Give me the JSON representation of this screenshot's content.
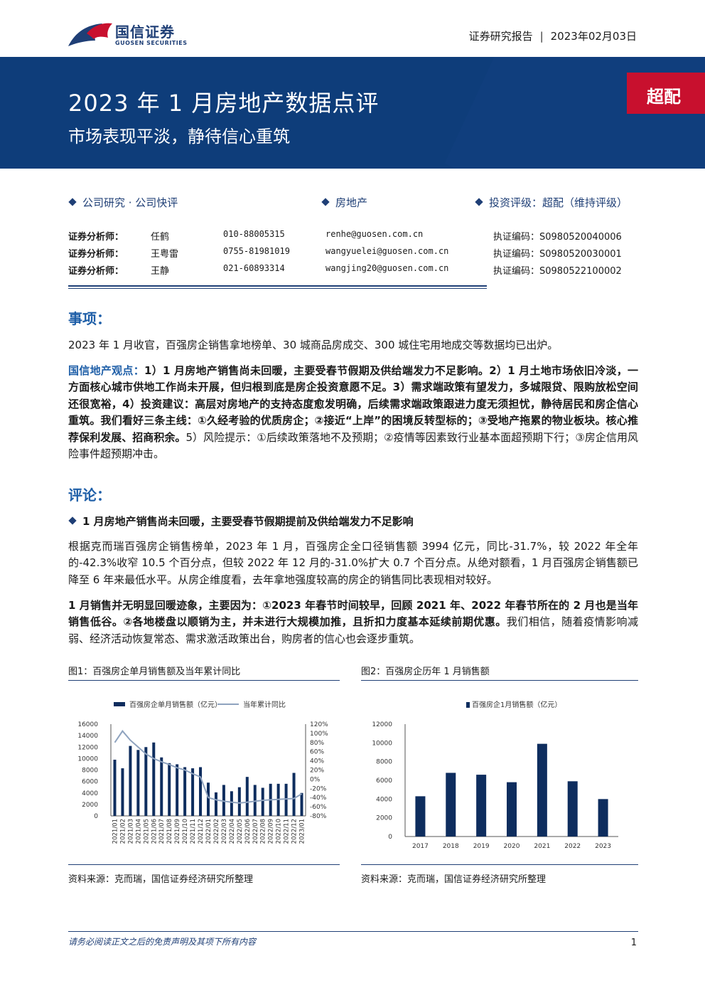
{
  "brand": {
    "name_cn": "国信证券",
    "name_en": "GUOSEN SECURITIES",
    "colors": {
      "navy": "#1f3f76",
      "banner": "#0e3d7a",
      "accent_blue": "#1f5fa8",
      "red": "#c8102e"
    }
  },
  "header": {
    "report_type": "证券研究报告",
    "date": "2023年02月03日"
  },
  "banner": {
    "title": "2023 年 1 月房地产数据点评",
    "subtitle": "市场表现平淡，静待信心重筑",
    "rating": "超配"
  },
  "info": {
    "category": "公司研究 · 公司快评",
    "sector": "房地产",
    "rating_text": "投资评级：超配（维持评级）"
  },
  "analysts": [
    {
      "role": "证券分析师：",
      "name": "任鹤",
      "phone": "010-88005315",
      "email": "renhe@guosen.com.cn",
      "license": "执证编码：S0980520040006"
    },
    {
      "role": "证券分析师：",
      "name": "王粤雷",
      "phone": "0755-81981019",
      "email": "wangyuelei@guosen.com.cn",
      "license": "执证编码：S0980520030001"
    },
    {
      "role": "证券分析师：",
      "name": "王静",
      "phone": "021-60893314",
      "email": "wangjing20@guosen.com.cn",
      "license": "执证编码：S0980522100002"
    }
  ],
  "event": {
    "heading": "事项：",
    "text": "2023 年 1 月收官，百强房企销售拿地榜单、30 城商品房成交、300 城住宅用地成交等数据均已出炉。"
  },
  "view": {
    "label": "国信地产观点：",
    "bold_text": "1）1 月房地产销售尚未回暖，主要受春节假期及供给端发力不足影响。2）1 月土地市场依旧冷淡，一方面核心城市供地工作尚未开展，但归根到底是房企投资意愿不足。3）需求端政策有望发力，多城限贷、限购放松空间还很宽裕，4）投资建议：高层对房地产的支持态度愈发明确，后续需求端政策跟进力度无须担忧，静待居民和房企信心重筑。我们看好三条主线：①久经考验的优质房企；②接近“上岸”的困境反转型标的；③受地产拖累的物业板块。核心推荐保利发展、招商积余。",
    "normal_text": "5）风险提示：①后续政策落地不及预期；②疫情等因素致行业基本面超预期下行；③房企信用风险事件超预期冲击。"
  },
  "comment": {
    "heading": "评论：",
    "bullet": "1 月房地产销售尚未回暖，主要受春节假期提前及供给端发力不足影响",
    "para1": "根据克而瑞百强房企销售榜单，2023 年 1 月，百强房企全口径销售额 3994 亿元，同比-31.7%，较 2022 年全年的-42.3%收窄 10.5 个百分点，但较 2022 年 12 月的-31.0%扩大 0.7 个百分点。从绝对额看，1 月百强房企销售额已降至 6 年来最低水平。从房企维度看，去年拿地强度较高的房企的销售同比表现相对较好。",
    "para2_bold": "1 月销售并无明显回暖迹象，主要因为：①2023 年春节时间较早，回顾 2021 年、2022 年春节所在的 2 月也是当年销售低谷。②各地楼盘以顺销为主，并未进行大规模加推，且折扣力度基本延续前期优惠。",
    "para2_normal": "我们相信，随着疫情影响减弱、经济活动恢复常态、需求激活政策出台，购房者的信心也会逐步重筑。"
  },
  "figure1": {
    "title": "图1：百强房企单月销售额及当年累计同比",
    "source": "资料来源：克而瑞，国信证券经济研究所整理"
  },
  "figure2": {
    "title": "图2：百强房企历年 1 月销售额",
    "source": "资料来源：克而瑞，国信证券经济研究所整理"
  },
  "footer": {
    "disclaimer": "请务必阅读正文之后的免责声明及其项下所有内容",
    "page": "1"
  },
  "chart_data": [
    {
      "type": "bar",
      "secondary_type": "line",
      "categories": [
        "2021/01",
        "2021/02",
        "2021/03",
        "2021/04",
        "2021/05",
        "2021/06",
        "2021/07",
        "2021/08",
        "2021/09",
        "2021/10",
        "2021/11",
        "2021/12",
        "2022/01",
        "2022/02",
        "2022/03",
        "2022/04",
        "2022/05",
        "2022/06",
        "2022/07",
        "2022/08",
        "2022/09",
        "2022/10",
        "2022/11",
        "2022/12",
        "2023/01"
      ],
      "series": [
        {
          "name": "百强房企单月销售额（亿元）",
          "axis": "left",
          "color": "#0e2d5e",
          "values": [
            9800,
            8300,
            12200,
            11500,
            12000,
            12800,
            10200,
            9200,
            9000,
            8500,
            8300,
            8500,
            5800,
            4100,
            5400,
            4300,
            5000,
            6800,
            5400,
            4900,
            5600,
            5600,
            5600,
            7500,
            4000
          ]
        },
        {
          "name": "当年累计同比",
          "axis": "right",
          "color": "#8fa3bf",
          "values": [
            80,
            105,
            85,
            70,
            55,
            45,
            38,
            32,
            25,
            20,
            12,
            5,
            -40,
            -45,
            -48,
            -50,
            -52,
            -50,
            -48,
            -46,
            -45,
            -44,
            -43,
            -42,
            -32
          ]
        }
      ],
      "yleft_ticks": [
        "16000",
        "14000",
        "12000",
        "10000",
        "8000",
        "6000",
        "4000",
        "2000",
        "0"
      ],
      "yright_ticks": [
        "120%",
        "100%",
        "80%",
        "60%",
        "40%",
        "20%",
        "0%",
        "-20%",
        "-40%",
        "-60%",
        "-80%"
      ],
      "ylim_left": [
        0,
        16000
      ],
      "ylim_right": [
        -80,
        120
      ],
      "legend": "top"
    },
    {
      "type": "bar",
      "categories": [
        "2017",
        "2018",
        "2019",
        "2020",
        "2021",
        "2022",
        "2023"
      ],
      "series": [
        {
          "name": "百强房企1月销售额（亿元）",
          "color": "#0e2d5e",
          "values": [
            4300,
            6800,
            6600,
            5800,
            9900,
            5900,
            4000
          ]
        }
      ],
      "y_ticks": [
        "12000",
        "10000",
        "8000",
        "6000",
        "4000",
        "2000",
        "0"
      ],
      "ylim": [
        0,
        12000
      ],
      "legend": "top"
    }
  ]
}
